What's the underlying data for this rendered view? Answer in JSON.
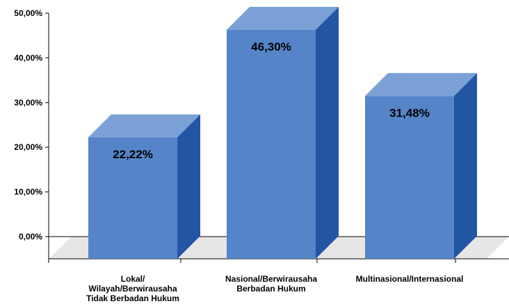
{
  "chart_data": {
    "type": "bar",
    "style": "3d",
    "categories": [
      [
        "Lokal/",
        "Wilayah/Berwirausaha",
        "Tidak Berbadan Hukum"
      ],
      [
        "Nasional/Berwirausaha",
        "Berbadan Hukum"
      ],
      [
        "Multinasional/Internasional"
      ]
    ],
    "values": [
      22.22,
      46.3,
      31.48
    ],
    "value_labels": [
      "22,22%",
      "46,30%",
      "31,48%"
    ],
    "ylim": [
      0,
      50
    ],
    "yticks": [
      "0,00%",
      "10,00%",
      "20,00%",
      "30,00%",
      "40,00%",
      "50,00%"
    ],
    "grid": false,
    "colors": {
      "front": "#5585c8",
      "top": "#7aa0d6",
      "side": "#2255a4",
      "floor": "#e6e6e6"
    }
  }
}
